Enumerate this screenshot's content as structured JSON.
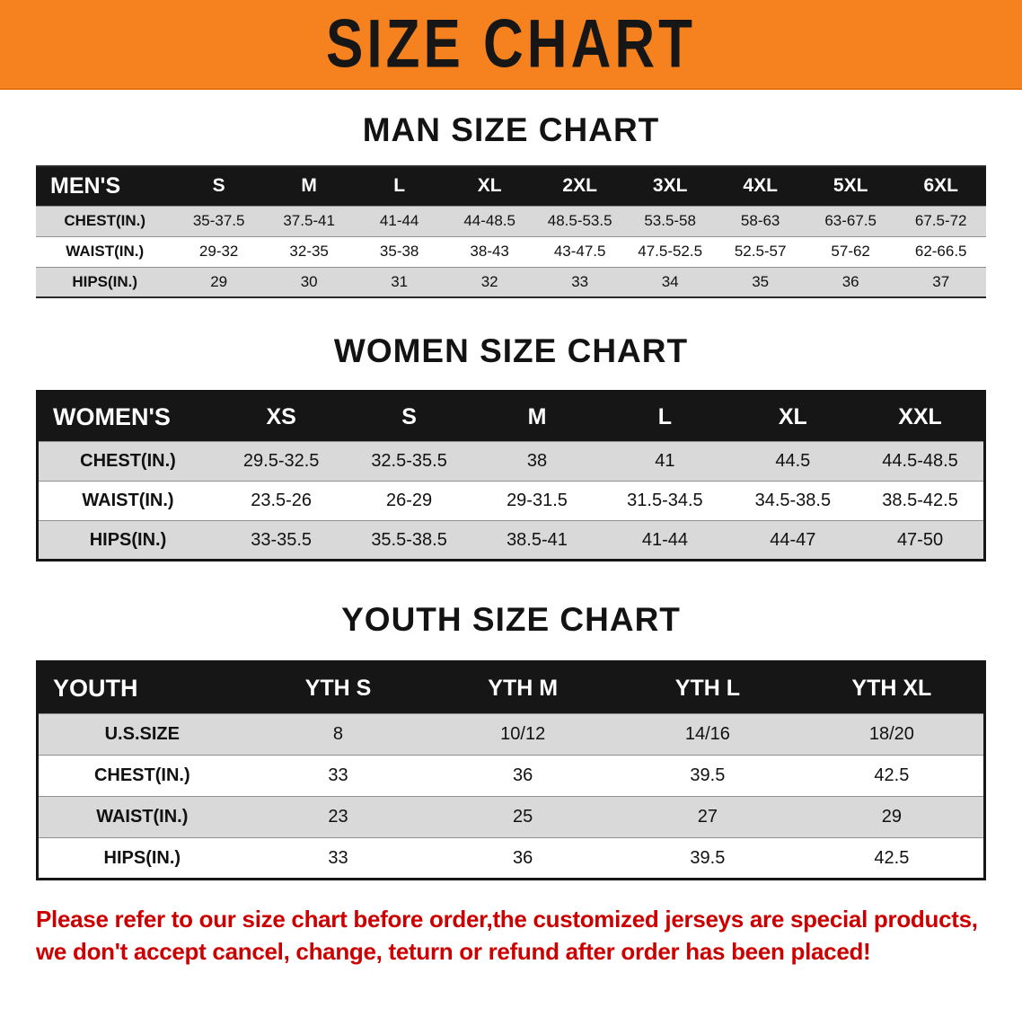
{
  "banner": {
    "title": "SIZE CHART",
    "bg_color": "#f5821f"
  },
  "sections": [
    {
      "title": "MAN SIZE CHART",
      "header_label": "MEN'S",
      "columns": [
        "S",
        "M",
        "L",
        "XL",
        "2XL",
        "3XL",
        "4XL",
        "5XL",
        "6XL"
      ],
      "rows": [
        {
          "label": "CHEST(IN.)",
          "values": [
            "35-37.5",
            "37.5-41",
            "41-44",
            "44-48.5",
            "48.5-53.5",
            "53.5-58",
            "58-63",
            "63-67.5",
            "67.5-72"
          ]
        },
        {
          "label": "WAIST(IN.)",
          "values": [
            "29-32",
            "32-35",
            "35-38",
            "38-43",
            "43-47.5",
            "47.5-52.5",
            "52.5-57",
            "57-62",
            "62-66.5"
          ]
        },
        {
          "label": "HIPS(IN.)",
          "values": [
            "29",
            "30",
            "31",
            "32",
            "33",
            "34",
            "35",
            "36",
            "37"
          ]
        }
      ]
    },
    {
      "title": "WOMEN SIZE CHART",
      "header_label": "WOMEN'S",
      "columns": [
        "XS",
        "S",
        "M",
        "L",
        "XL",
        "XXL"
      ],
      "rows": [
        {
          "label": "CHEST(IN.)",
          "values": [
            "29.5-32.5",
            "32.5-35.5",
            "38",
            "41",
            "44.5",
            "44.5-48.5"
          ]
        },
        {
          "label": "WAIST(IN.)",
          "values": [
            "23.5-26",
            "26-29",
            "29-31.5",
            "31.5-34.5",
            "34.5-38.5",
            "38.5-42.5"
          ]
        },
        {
          "label": "HIPS(IN.)",
          "values": [
            "33-35.5",
            "35.5-38.5",
            "38.5-41",
            "41-44",
            "44-47",
            "47-50"
          ]
        }
      ]
    },
    {
      "title": "YOUTH SIZE CHART",
      "header_label": "YOUTH",
      "columns": [
        "YTH S",
        "YTH M",
        "YTH L",
        "YTH XL"
      ],
      "rows": [
        {
          "label": "U.S.SIZE",
          "values": [
            "8",
            "10/12",
            "14/16",
            "18/20"
          ]
        },
        {
          "label": "CHEST(IN.)",
          "values": [
            "33",
            "36",
            "39.5",
            "42.5"
          ]
        },
        {
          "label": "WAIST(IN.)",
          "values": [
            "23",
            "25",
            "27",
            "29"
          ]
        },
        {
          "label": "HIPS(IN.)",
          "values": [
            "33",
            "36",
            "39.5",
            "42.5"
          ]
        }
      ]
    }
  ],
  "footer": {
    "lines": [
      "Please refer to our size chart before order,the customized jerseys are special products,",
      "we don't accept cancel, change, teturn or refund after order has been placed!"
    ],
    "text_color": "#cc0000"
  }
}
